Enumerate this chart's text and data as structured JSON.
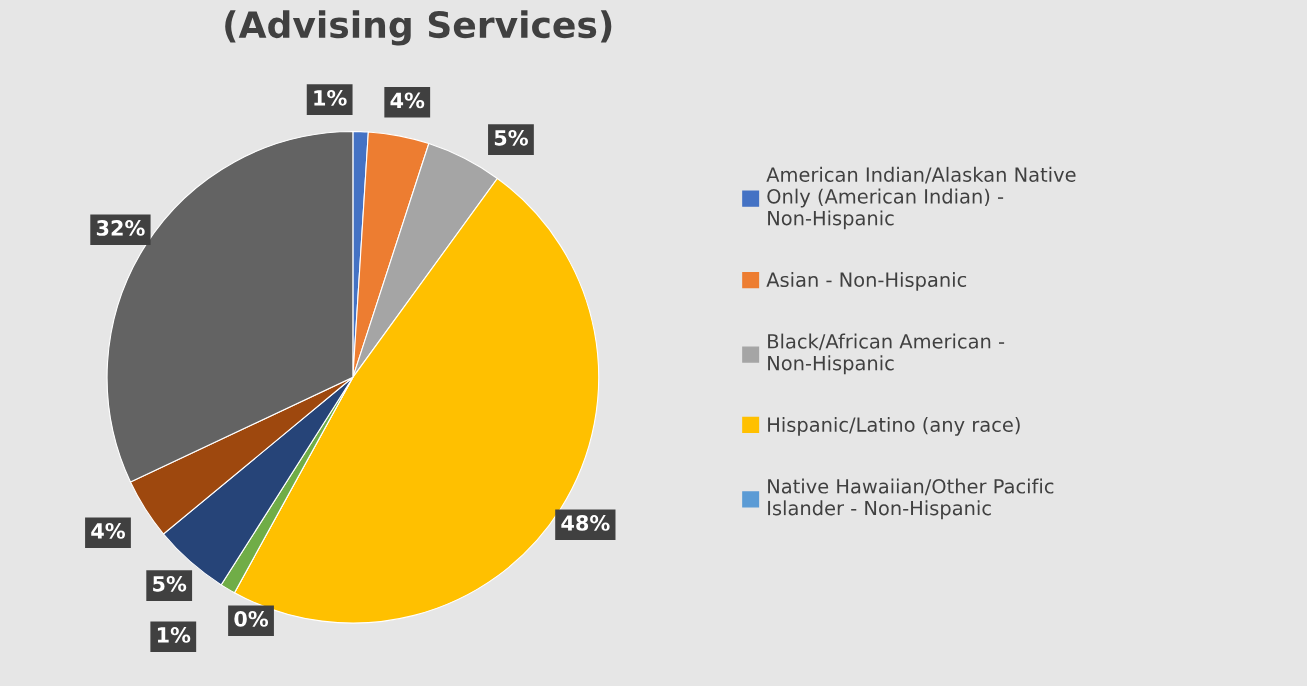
{
  "chart_data": {
    "type": "pie",
    "title": "(Advising Services)",
    "categories": [
      "American Indian/Alaskan Native Only (American Indian) - Non-Hispanic",
      "Asian - Non-Hispanic",
      "Black/African American - Non-Hispanic",
      "Hispanic/Latino (any race)",
      "Native Hawaiian/Other Pacific Islander - Non-Hispanic",
      null,
      null,
      null,
      null
    ],
    "values": [
      1,
      4,
      5,
      48,
      0,
      1,
      5,
      4,
      32
    ],
    "colors": [
      "#4472c4",
      "#ed7d31",
      "#a5a5a5",
      "#ffc000",
      "#5b9bd5",
      "#70ad47",
      "#264478",
      "#9e480e",
      "#636363"
    ],
    "value_labels": [
      "1%",
      "4%",
      "5%",
      "48%",
      "0%",
      "1%",
      "5%",
      "4%",
      "32%"
    ],
    "legend": "right"
  }
}
